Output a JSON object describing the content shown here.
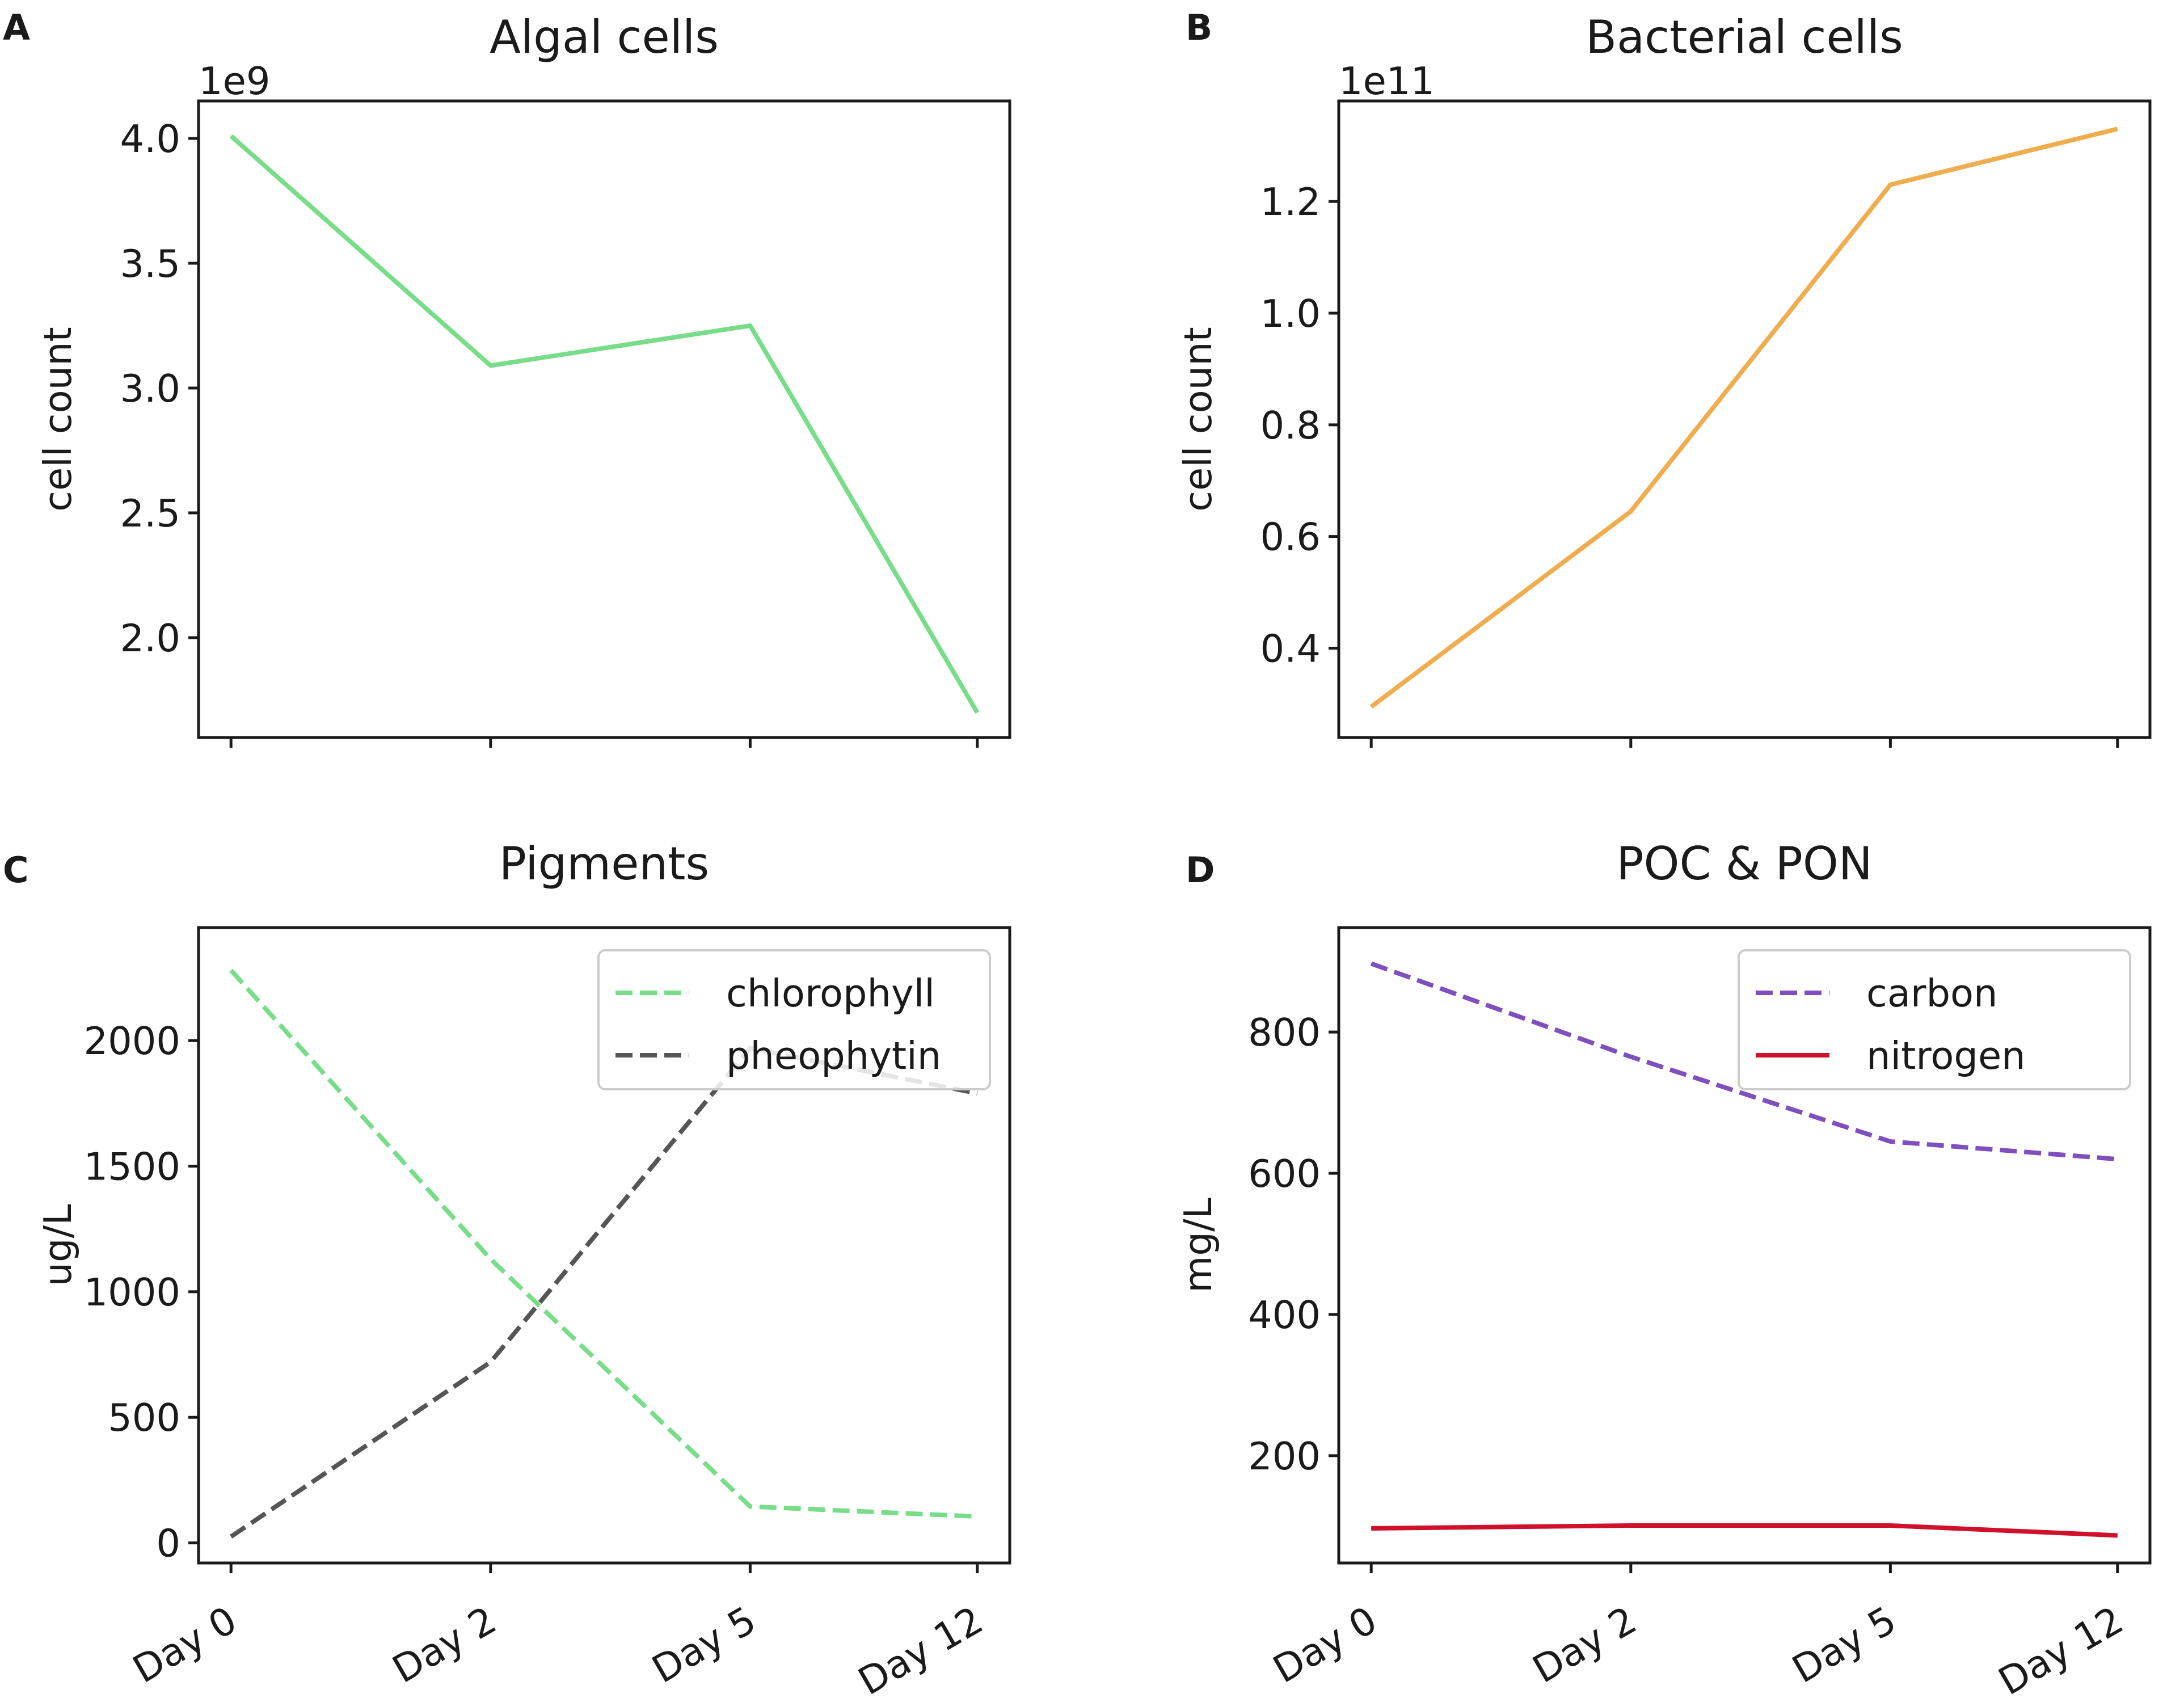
{
  "chart_data": [
    {
      "panel": "A",
      "type": "line",
      "title": "Algal cells",
      "ylabel": "cell count",
      "xlabel": "",
      "offset_text": "1e9",
      "categories": [
        "Day 0",
        "Day 2",
        "Day 5",
        "Day 12"
      ],
      "show_xticklabels": false,
      "ylim": [
        1.6,
        4.15
      ],
      "yticks": [
        2.0,
        2.5,
        3.0,
        3.5,
        4.0
      ],
      "ytick_labels": [
        "2.0",
        "2.5",
        "3.0",
        "3.5",
        "4.0"
      ],
      "series": [
        {
          "name": "algal cells",
          "values": [
            4.01,
            3.09,
            3.25,
            1.7
          ],
          "color": "#77dd88",
          "dash": "solid"
        }
      ],
      "legend": null
    },
    {
      "panel": "B",
      "type": "line",
      "title": "Bacterial cells",
      "ylabel": "cell count",
      "xlabel": "",
      "offset_text": "1e11",
      "categories": [
        "Day 0",
        "Day 2",
        "Day 5",
        "Day 12"
      ],
      "show_xticklabels": false,
      "ylim": [
        0.24,
        1.38
      ],
      "yticks": [
        0.4,
        0.6,
        0.8,
        1.0,
        1.2
      ],
      "ytick_labels": [
        "0.4",
        "0.6",
        "0.8",
        "1.0",
        "1.2"
      ],
      "series": [
        {
          "name": "bacterial cells",
          "values": [
            0.295,
            0.645,
            1.23,
            1.33
          ],
          "color": "#f0ad4e",
          "dash": "solid"
        }
      ],
      "legend": null
    },
    {
      "panel": "C",
      "type": "line",
      "title": "Pigments",
      "ylabel": "ug/L",
      "xlabel": "",
      "offset_text": "",
      "categories": [
        "Day 0",
        "Day 2",
        "Day 5",
        "Day 12"
      ],
      "show_xticklabels": true,
      "ylim": [
        -80,
        2450
      ],
      "yticks": [
        0,
        500,
        1000,
        1500,
        2000
      ],
      "ytick_labels": [
        "0",
        "500",
        "1000",
        "1500",
        "2000"
      ],
      "series": [
        {
          "name": "chlorophyll",
          "values": [
            2280,
            1130,
            145,
            105
          ],
          "color": "#77dd88",
          "dash": "dashed"
        },
        {
          "name": "pheophytin",
          "values": [
            25,
            720,
            1970,
            1790
          ],
          "color": "#555555",
          "dash": "dashed"
        }
      ],
      "legend": "top-right"
    },
    {
      "panel": "D",
      "type": "line",
      "title": "POC & PON",
      "ylabel": "mg/L",
      "xlabel": "",
      "offset_text": "",
      "categories": [
        "Day 0",
        "Day 2",
        "Day 5",
        "Day 12"
      ],
      "show_xticklabels": true,
      "ylim": [
        48,
        948
      ],
      "yticks": [
        200,
        400,
        600,
        800
      ],
      "ytick_labels": [
        "200",
        "400",
        "600",
        "800"
      ],
      "series": [
        {
          "name": "carbon",
          "values": [
            897,
            765,
            645,
            620
          ],
          "color": "#7f4fc0",
          "dash": "dashed"
        },
        {
          "name": "nitrogen",
          "values": [
            97,
            101,
            101,
            87
          ],
          "color": "#d0112b",
          "dash": "solid"
        }
      ],
      "legend": "top-right"
    }
  ]
}
